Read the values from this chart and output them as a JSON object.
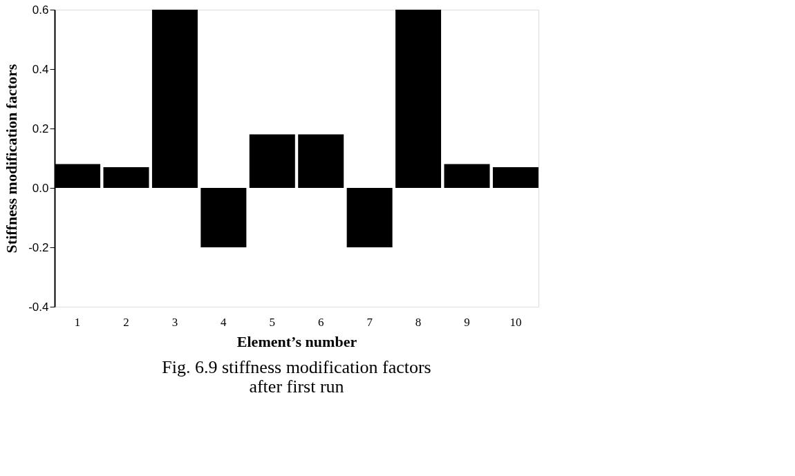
{
  "chart_data": {
    "type": "bar",
    "title": "Fig. 6.9 stiffness modification factors\nafter first run",
    "xlabel": "Element’s number",
    "ylabel": "Stiffness  modification  factors",
    "categories": [
      "1",
      "2",
      "3",
      "4",
      "5",
      "6",
      "7",
      "8",
      "9",
      "10"
    ],
    "values": [
      0.08,
      0.07,
      0.6,
      -0.2,
      0.18,
      0.18,
      -0.2,
      0.6,
      0.08,
      0.07
    ],
    "color": "#000000",
    "ylim": [
      -0.4,
      0.6
    ],
    "yticks": [
      {
        "value": -0.4,
        "label": "-0.4"
      },
      {
        "value": -0.2,
        "label": "-0.2"
      },
      {
        "value": 0,
        "label": "0.0"
      },
      {
        "value": 0.2,
        "label": "0.2"
      },
      {
        "value": 0.4,
        "label": "0.4"
      },
      {
        "value": 0.6,
        "label": "0.6"
      }
    ],
    "grid": false
  }
}
